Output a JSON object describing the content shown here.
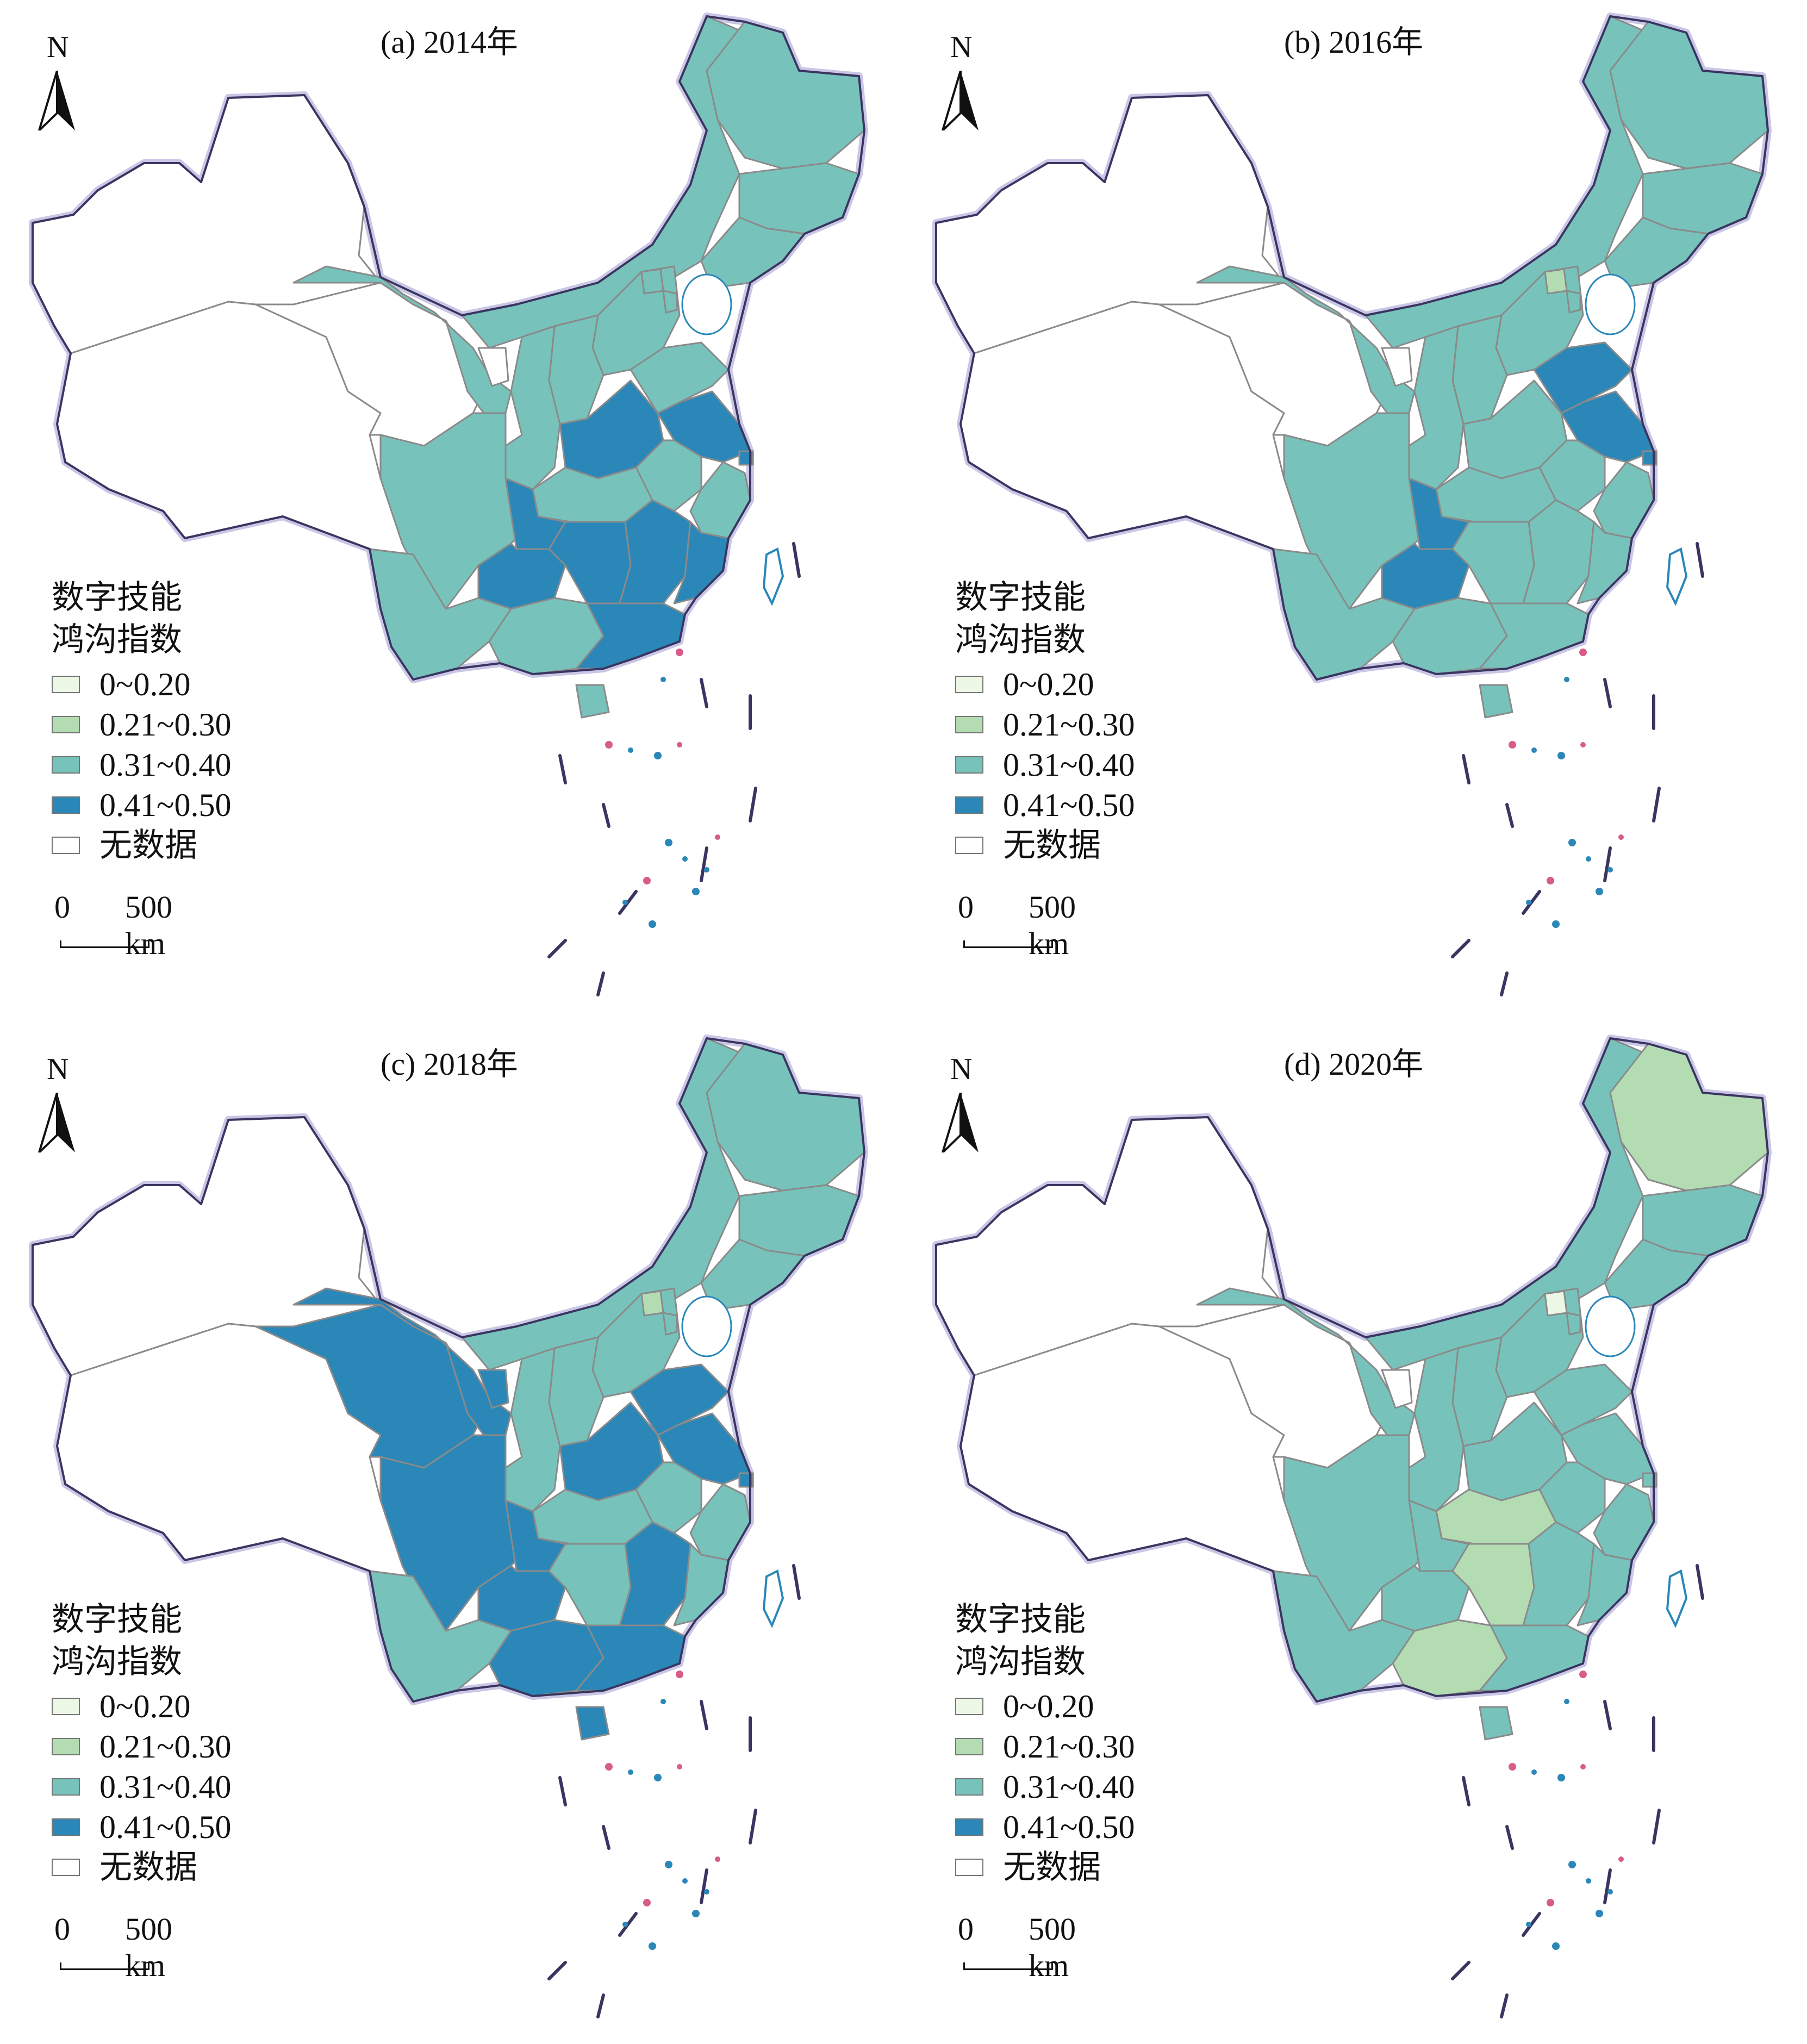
{
  "legend": {
    "title_line1": "数字技能",
    "title_line2": "鸿沟指数",
    "classes": [
      {
        "label": "0~0.20",
        "color": "#edf7e6"
      },
      {
        "label": "0.21~0.30",
        "color": "#b3dcb3"
      },
      {
        "label": "0.31~0.40",
        "color": "#77c3bb"
      },
      {
        "label": "0.41~0.50",
        "color": "#2a87b8"
      },
      {
        "label": "无数据",
        "color": "#ffffff"
      }
    ]
  },
  "north_label": "N",
  "scale": {
    "zero": "0",
    "distance": "500 km"
  },
  "icons": [
    "north-arrow-icon"
  ],
  "panels": [
    {
      "title": "(a) 2014年",
      "regions": {
        "xinjiang": 4,
        "tibet": 4,
        "qinghai": 4,
        "gansu": 2,
        "innermongolia": 2,
        "ningxia": 4,
        "heilongjiang": 2,
        "jilin": 2,
        "liaoning": 2,
        "beijing": 2,
        "tianjin": 2,
        "hebei": 2,
        "shanxi": 2,
        "shaanxi": 2,
        "henan": 3,
        "shandong": 2,
        "jiangsu": 3,
        "anhui": 2,
        "shanghai": 3,
        "zhejiang": 2,
        "hubei": 2,
        "sichuan": 2,
        "chongqing": 3,
        "guizhou": 3,
        "yunnan": 2,
        "guangxi": 2,
        "hunan": 3,
        "jiangxi": 3,
        "fujian": 3,
        "guangdong": 3,
        "hainan": 2
      }
    },
    {
      "title": "(b) 2016年",
      "regions": {
        "xinjiang": 4,
        "tibet": 4,
        "qinghai": 4,
        "gansu": 2,
        "innermongolia": 2,
        "ningxia": 4,
        "heilongjiang": 2,
        "jilin": 2,
        "liaoning": 2,
        "beijing": 1,
        "tianjin": 2,
        "hebei": 2,
        "shanxi": 2,
        "shaanxi": 2,
        "henan": 2,
        "shandong": 3,
        "jiangsu": 3,
        "anhui": 2,
        "shanghai": 3,
        "zhejiang": 2,
        "hubei": 2,
        "sichuan": 2,
        "chongqing": 3,
        "guizhou": 3,
        "yunnan": 2,
        "guangxi": 2,
        "hunan": 2,
        "jiangxi": 2,
        "fujian": 2,
        "guangdong": 2,
        "hainan": 2
      }
    },
    {
      "title": "(c) 2018年",
      "regions": {
        "xinjiang": 4,
        "tibet": 4,
        "qinghai": 3,
        "gansu": 3,
        "innermongolia": 2,
        "ningxia": 3,
        "heilongjiang": 2,
        "jilin": 2,
        "liaoning": 2,
        "beijing": 1,
        "tianjin": 2,
        "hebei": 2,
        "shanxi": 2,
        "shaanxi": 2,
        "henan": 3,
        "shandong": 3,
        "jiangsu": 3,
        "anhui": 2,
        "shanghai": 3,
        "zhejiang": 2,
        "hubei": 2,
        "sichuan": 3,
        "chongqing": 3,
        "guizhou": 3,
        "yunnan": 2,
        "guangxi": 3,
        "hunan": 2,
        "jiangxi": 3,
        "fujian": 2,
        "guangdong": 3,
        "hainan": 3
      }
    },
    {
      "title": "(d) 2020年",
      "regions": {
        "xinjiang": 4,
        "tibet": 4,
        "qinghai": 4,
        "gansu": 2,
        "innermongolia": 2,
        "ningxia": 4,
        "heilongjiang": 1,
        "jilin": 2,
        "liaoning": 2,
        "beijing": 0,
        "tianjin": 2,
        "hebei": 2,
        "shanxi": 2,
        "shaanxi": 2,
        "henan": 2,
        "shandong": 2,
        "jiangsu": 2,
        "anhui": 2,
        "shanghai": 2,
        "zhejiang": 2,
        "hubei": 1,
        "sichuan": 2,
        "chongqing": 2,
        "guizhou": 2,
        "yunnan": 2,
        "guangxi": 1,
        "hunan": 1,
        "jiangxi": 2,
        "fujian": 2,
        "guangdong": 2,
        "hainan": 2
      }
    }
  ]
}
